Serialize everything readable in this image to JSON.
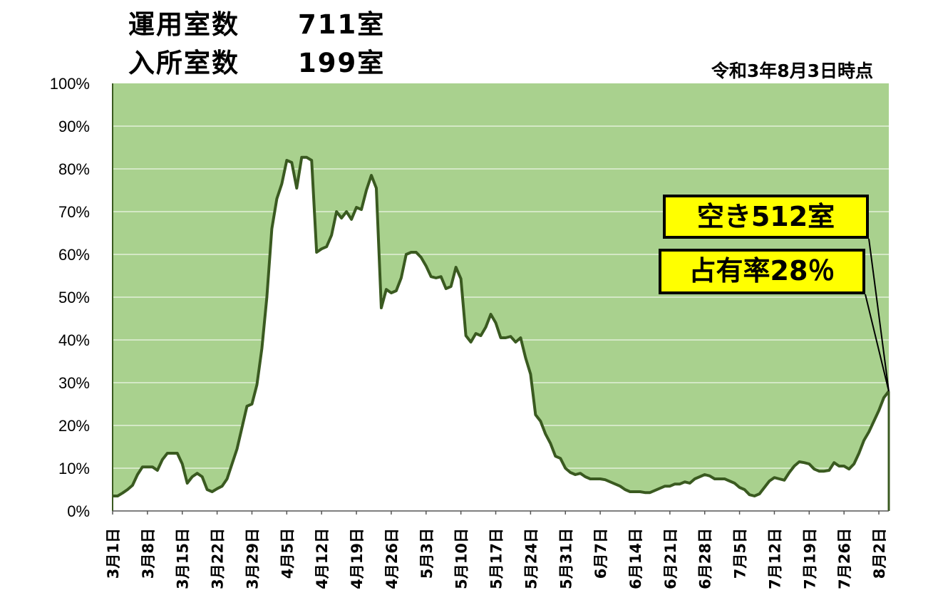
{
  "header": {
    "operating_rooms_label": "運用室数",
    "operating_rooms_value": "711室",
    "admitted_rooms_label": "入所室数",
    "admitted_rooms_value": "199室",
    "as_of": "令和3年8月3日時点"
  },
  "callouts": {
    "vacancy": "空き512室",
    "occupancy": "占有率28％"
  },
  "colors": {
    "vacant_fill": "#a9d18e",
    "occupied_fill": "#ffffff",
    "line": "#3a5a20",
    "callout_bg": "#ffff00"
  },
  "chart_data": {
    "type": "area",
    "ylim": [
      0,
      100
    ],
    "y_ticks": [
      "0%",
      "10%",
      "20%",
      "30%",
      "40%",
      "50%",
      "60%",
      "70%",
      "80%",
      "90%",
      "100%"
    ],
    "x_tick_labels": [
      "3月1日",
      "3月8日",
      "3月15日",
      "3月22日",
      "3月29日",
      "4月5日",
      "4月12日",
      "4月19日",
      "4月26日",
      "5月3日",
      "5月10日",
      "5月17日",
      "5月24日",
      "5月31日",
      "6月7日",
      "6月14日",
      "6月21日",
      "6月28日",
      "7月5日",
      "7月12日",
      "7月19日",
      "7月26日",
      "8月2日"
    ],
    "x_range": [
      "3月1日",
      "8月3日"
    ],
    "grid": true,
    "series": [
      {
        "values": [
          3.5,
          3.5,
          4.2,
          5.0,
          6.0,
          8.5,
          10.3,
          10.3,
          10.3,
          9.5,
          12.0,
          13.5,
          13.5,
          13.5,
          11.0,
          6.5,
          8.0,
          8.8,
          8.0,
          5.0,
          4.5,
          5.2,
          5.8,
          7.5,
          11.0,
          14.5,
          19.5,
          24.5,
          25.0,
          29.5,
          38.0,
          50.0,
          66.0,
          73.0,
          76.5,
          82.0,
          81.5,
          75.5,
          82.7,
          82.7,
          82.0,
          60.5,
          61.3,
          61.8,
          64.5,
          70.0,
          68.5,
          70.0,
          68.2,
          71.0,
          70.5,
          75.0,
          78.5,
          75.5,
          47.5,
          51.8,
          51.0,
          51.5,
          54.5,
          60.0,
          60.5,
          60.5,
          59.3,
          57.3,
          54.8,
          54.5,
          54.8,
          52.0,
          52.5,
          57.0,
          54.3,
          41.0,
          39.5,
          41.5,
          41.0,
          43.0,
          46.0,
          44.0,
          40.5,
          40.5,
          40.8,
          39.5,
          40.5,
          35.8,
          32.0,
          22.5,
          21.0,
          18.0,
          15.8,
          12.8,
          12.3,
          10.0,
          9.0,
          8.5,
          8.8,
          8.0,
          7.5,
          7.5,
          7.5,
          7.3,
          6.8,
          6.3,
          5.8,
          5.0,
          4.5,
          4.5,
          4.5,
          4.3,
          4.3,
          4.8,
          5.3,
          5.8,
          5.8,
          6.3,
          6.3,
          6.8,
          6.5,
          7.5,
          8.0,
          8.5,
          8.2,
          7.5,
          7.5,
          7.5,
          7.0,
          6.5,
          5.5,
          5.0,
          3.8,
          3.5,
          4.0,
          5.5,
          7.0,
          7.8,
          7.5,
          7.2,
          9.0,
          10.5,
          11.5,
          11.3,
          11.0,
          9.8,
          9.3,
          9.3,
          9.5,
          11.3,
          10.5,
          10.5,
          9.8,
          11.0,
          13.5,
          16.5,
          18.5,
          21.0,
          23.5,
          26.5,
          28.0
        ]
      }
    ]
  }
}
